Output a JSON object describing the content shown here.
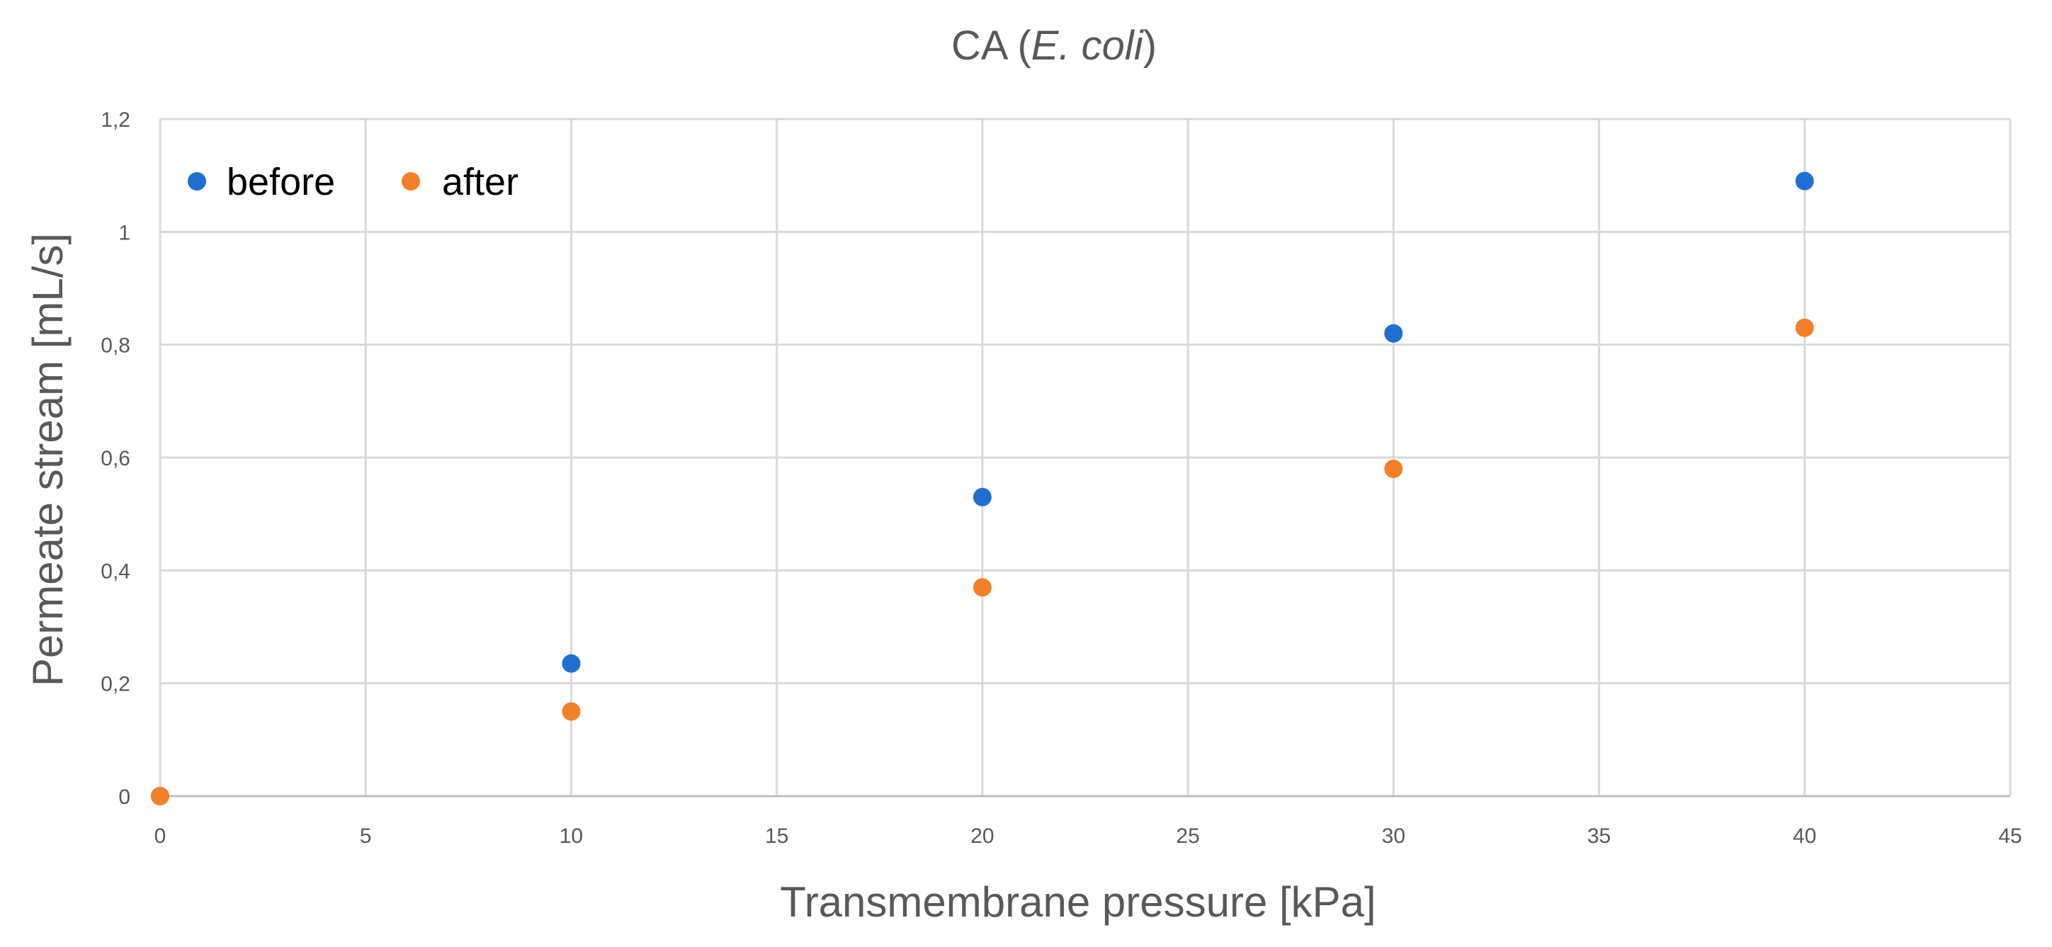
{
  "chart_data": {
    "type": "scatter",
    "title_main": "CA (",
    "title_italic": "E. coli",
    "title_end": ")",
    "xlabel": "Transmembrane pressure [kPa]",
    "ylabel": "Permeate stream [mL/s]",
    "xlim": [
      0,
      45
    ],
    "ylim": [
      0,
      1.2
    ],
    "x_ticks": [
      0,
      5,
      10,
      15,
      20,
      25,
      30,
      35,
      40,
      45
    ],
    "x_tick_labels": [
      "0",
      "5",
      "10",
      "15",
      "20",
      "25",
      "30",
      "35",
      "40",
      "45"
    ],
    "y_ticks": [
      0,
      0.2,
      0.4,
      0.6,
      0.8,
      1.0,
      1.2
    ],
    "y_tick_labels": [
      "0",
      "0,2",
      "0,4",
      "0,6",
      "0,8",
      "1",
      "1,2"
    ],
    "grid": true,
    "legend_position": "top-left",
    "series": [
      {
        "name": "before",
        "color": "#1f6fd1",
        "x": [
          0,
          10,
          20,
          30,
          40
        ],
        "y": [
          0,
          0.235,
          0.53,
          0.82,
          1.09
        ]
      },
      {
        "name": "after",
        "color": "#f5802a",
        "x": [
          0,
          10,
          20,
          30,
          40
        ],
        "y": [
          0,
          0.15,
          0.37,
          0.58,
          0.83
        ]
      }
    ]
  }
}
